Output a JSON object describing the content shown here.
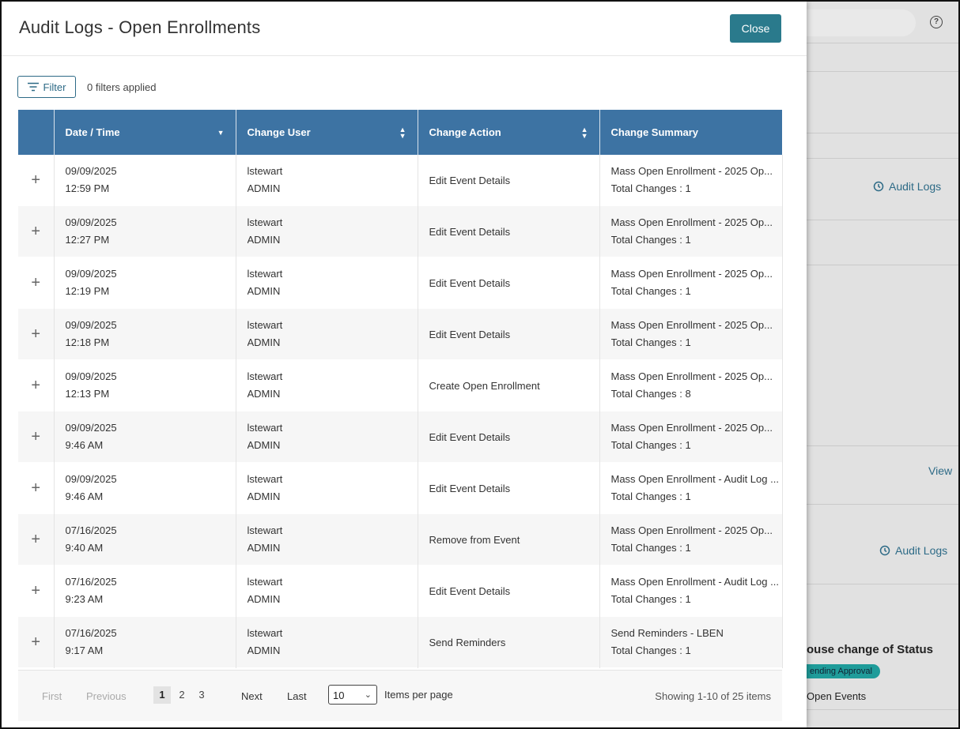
{
  "modal": {
    "title": "Audit Logs - Open Enrollments",
    "close_label": "Close"
  },
  "filter": {
    "button_label": "Filter",
    "applied_text": "0 filters applied"
  },
  "table": {
    "headers": [
      "Date / Time",
      "Change User",
      "Change Action",
      "Change Summary"
    ],
    "rows": [
      {
        "date": "09/09/2025",
        "time": "12:59 PM",
        "user": "lstewart",
        "role": "ADMIN",
        "action": "Edit Event Details",
        "summary": "Mass Open Enrollment - 2025 Op...",
        "changes": "Total Changes : 1"
      },
      {
        "date": "09/09/2025",
        "time": "12:27 PM",
        "user": "lstewart",
        "role": "ADMIN",
        "action": "Edit Event Details",
        "summary": "Mass Open Enrollment - 2025 Op...",
        "changes": "Total Changes : 1"
      },
      {
        "date": "09/09/2025",
        "time": "12:19 PM",
        "user": "lstewart",
        "role": "ADMIN",
        "action": "Edit Event Details",
        "summary": "Mass Open Enrollment - 2025 Op...",
        "changes": "Total Changes : 1"
      },
      {
        "date": "09/09/2025",
        "time": "12:18 PM",
        "user": "lstewart",
        "role": "ADMIN",
        "action": "Edit Event Details",
        "summary": "Mass Open Enrollment - 2025 Op...",
        "changes": "Total Changes : 1"
      },
      {
        "date": "09/09/2025",
        "time": "12:13 PM",
        "user": "lstewart",
        "role": "ADMIN",
        "action": "Create Open Enrollment",
        "summary": "Mass Open Enrollment - 2025 Op...",
        "changes": "Total Changes : 8"
      },
      {
        "date": "09/09/2025",
        "time": "9:46 AM",
        "user": "lstewart",
        "role": "ADMIN",
        "action": "Edit Event Details",
        "summary": "Mass Open Enrollment - 2025 Op...",
        "changes": "Total Changes : 1"
      },
      {
        "date": "09/09/2025",
        "time": "9:46 AM",
        "user": "lstewart",
        "role": "ADMIN",
        "action": "Edit Event Details",
        "summary": "Mass Open Enrollment - Audit Log ...",
        "changes": "Total Changes : 1"
      },
      {
        "date": "07/16/2025",
        "time": "9:40 AM",
        "user": "lstewart",
        "role": "ADMIN",
        "action": "Remove from Event",
        "summary": "Mass Open Enrollment - 2025 Op...",
        "changes": "Total Changes : 1"
      },
      {
        "date": "07/16/2025",
        "time": "9:23 AM",
        "user": "lstewart",
        "role": "ADMIN",
        "action": "Edit Event Details",
        "summary": "Mass Open Enrollment - Audit Log ...",
        "changes": "Total Changes : 1"
      },
      {
        "date": "07/16/2025",
        "time": "9:17 AM",
        "user": "lstewart",
        "role": "ADMIN",
        "action": "Send Reminders",
        "summary": "Send Reminders - LBEN",
        "changes": "Total Changes : 1"
      }
    ]
  },
  "pager": {
    "first": "First",
    "previous": "Previous",
    "pages": [
      "1",
      "2",
      "3"
    ],
    "current_page": "1",
    "next": "Next",
    "last": "Last",
    "per_page_value": "10",
    "per_page_label": "Items per page",
    "showing": "Showing 1-10 of 25 items"
  },
  "background": {
    "help_glyph": "?",
    "audit_logs_1": "Audit Logs",
    "view_link": "View",
    "audit_logs_2": "Audit Logs",
    "status_heading": "ouse change of Status",
    "status_badge": "ending Approval",
    "open_events": "Open Events"
  },
  "colors": {
    "header_blue": "#3d73a3",
    "close_teal": "#2a7a8c",
    "link_blue": "#2d6a86",
    "badge_teal": "#1f9c9a"
  }
}
